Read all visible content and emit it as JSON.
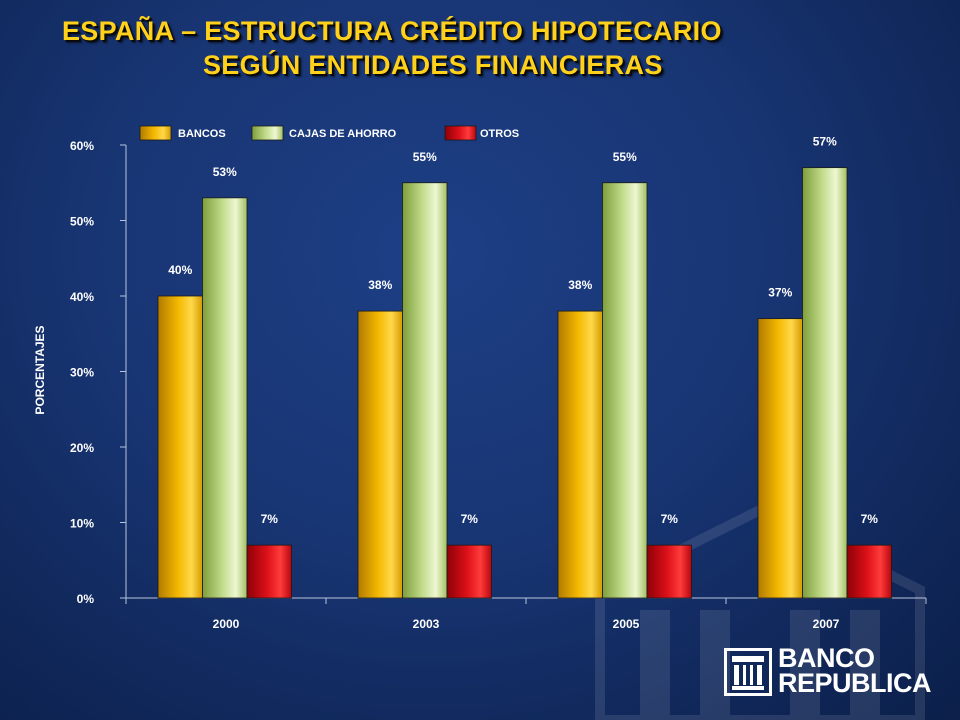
{
  "title": {
    "line1": "ESPAÑA – ESTRUCTURA CRÉDITO HIPOTECARIO",
    "line2": "SEGÚN ENTIDADES FINANCIERAS"
  },
  "colors": {
    "bancos": "#f2b700",
    "cajas": "#b5d27a",
    "otros": "#d9101a",
    "title": "#ffd11a"
  },
  "chart_data": {
    "type": "bar",
    "categories": [
      "2000",
      "2003",
      "2005",
      "2007"
    ],
    "series": [
      {
        "name": "BANCOS",
        "values": [
          40,
          38,
          38,
          37
        ],
        "labels": [
          "40%",
          "38%",
          "38%",
          "37%"
        ]
      },
      {
        "name": "CAJAS DE AHORRO",
        "values": [
          53,
          55,
          55,
          57
        ],
        "labels": [
          "53%",
          "55%",
          "55%",
          "57%"
        ]
      },
      {
        "name": "OTROS",
        "values": [
          7,
          7,
          7,
          7
        ],
        "labels": [
          "7%",
          "7%",
          "7%",
          "7%"
        ]
      }
    ],
    "ylabel": "PORCENTAJES",
    "xlabel": "",
    "ylim": [
      0,
      60
    ],
    "yticks": [
      0,
      10,
      20,
      30,
      40,
      50,
      60
    ],
    "ytick_labels": [
      "0%",
      "10%",
      "20%",
      "30%",
      "40%",
      "50%",
      "60%"
    ],
    "legend_position": "top",
    "grid": false
  },
  "logo": {
    "line1": "BANCO",
    "line2": "REPUBLICA"
  }
}
